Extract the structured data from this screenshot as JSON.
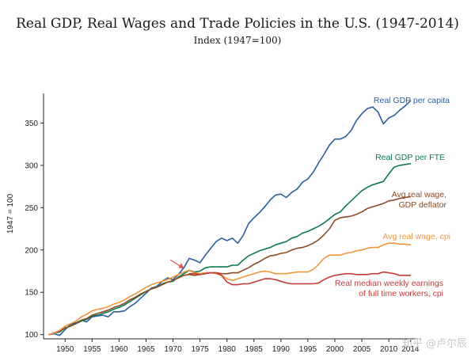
{
  "chart_data": {
    "type": "line",
    "title": "Real GDP, Real Wages and Trade Policies in the U.S. (1947-2014)",
    "subtitle": "Index (1947=100)",
    "ylabel": "1947 = 100",
    "xlabel": "",
    "xlim": [
      1946,
      2016
    ],
    "ylim": [
      95,
      385
    ],
    "x_ticks": [
      1950,
      1955,
      1960,
      1965,
      1970,
      1975,
      1980,
      1985,
      1990,
      1995,
      2000,
      2005,
      2010,
      2014
    ],
    "y_ticks": [
      100,
      150,
      200,
      250,
      300,
      350
    ],
    "grid": false,
    "annotation": {
      "type": "arrow",
      "target_x": 1972,
      "target_y": 178,
      "color": "#d9534f"
    },
    "series": [
      {
        "name": "Real GDP per capita",
        "label_lines": [
          "Real GDP per capita"
        ],
        "color": "#2c5d9c",
        "x": [
          1947,
          1948,
          1949,
          1950,
          1951,
          1952,
          1953,
          1954,
          1955,
          1956,
          1957,
          1958,
          1959,
          1960,
          1961,
          1962,
          1963,
          1964,
          1965,
          1966,
          1967,
          1968,
          1969,
          1970,
          1971,
          1972,
          1973,
          1974,
          1975,
          1976,
          1977,
          1978,
          1979,
          1980,
          1981,
          1982,
          1983,
          1984,
          1985,
          1986,
          1987,
          1988,
          1989,
          1990,
          1991,
          1992,
          1993,
          1994,
          1995,
          1996,
          1997,
          1998,
          1999,
          2000,
          2001,
          2002,
          2003,
          2004,
          2005,
          2006,
          2007,
          2008,
          2009,
          2010,
          2011,
          2012,
          2013,
          2014
        ],
        "values": [
          100,
          101,
          99,
          106,
          112,
          114,
          117,
          115,
          121,
          122,
          123,
          121,
          127,
          127,
          128,
          133,
          137,
          143,
          149,
          155,
          157,
          163,
          167,
          165,
          171,
          179,
          190,
          188,
          185,
          194,
          202,
          210,
          214,
          211,
          214,
          208,
          217,
          231,
          238,
          244,
          251,
          259,
          265,
          266,
          262,
          268,
          272,
          280,
          284,
          292,
          303,
          313,
          324,
          331,
          331,
          334,
          341,
          353,
          361,
          367,
          369,
          363,
          349,
          356,
          359,
          365,
          370,
          376
        ]
      },
      {
        "name": "Real GDP per FTE",
        "label_lines": [
          "Real GDP per FTE"
        ],
        "color": "#0d7a4e",
        "x": [
          1947,
          1948,
          1949,
          1950,
          1951,
          1952,
          1953,
          1954,
          1955,
          1956,
          1957,
          1958,
          1959,
          1960,
          1961,
          1962,
          1963,
          1964,
          1965,
          1966,
          1967,
          1968,
          1969,
          1970,
          1971,
          1972,
          1973,
          1974,
          1975,
          1976,
          1977,
          1978,
          1979,
          1980,
          1981,
          1982,
          1983,
          1984,
          1985,
          1986,
          1987,
          1988,
          1989,
          1990,
          1991,
          1992,
          1993,
          1994,
          1995,
          1996,
          1997,
          1998,
          1999,
          2000,
          2001,
          2002,
          2003,
          2004,
          2005,
          2006,
          2007,
          2008,
          2009,
          2010,
          2011,
          2012,
          2013,
          2014
        ],
        "values": [
          100,
          102,
          103,
          108,
          110,
          113,
          116,
          118,
          122,
          123,
          125,
          127,
          130,
          132,
          135,
          139,
          143,
          147,
          151,
          154,
          156,
          160,
          162,
          163,
          168,
          172,
          176,
          174,
          175,
          179,
          180,
          180,
          180,
          180,
          182,
          182,
          188,
          193,
          196,
          199,
          201,
          203,
          206,
          208,
          210,
          214,
          216,
          220,
          222,
          225,
          228,
          232,
          237,
          242,
          245,
          252,
          258,
          264,
          270,
          274,
          277,
          279,
          281,
          290,
          298,
          300,
          301,
          302
        ]
      },
      {
        "name": "Avg real wage, GDP deflator",
        "label_lines": [
          "Avg real wage,",
          "GDP deflator"
        ],
        "color": "#8b4a22",
        "x": [
          1947,
          1948,
          1949,
          1950,
          1951,
          1952,
          1953,
          1954,
          1955,
          1956,
          1957,
          1958,
          1959,
          1960,
          1961,
          1962,
          1963,
          1964,
          1965,
          1966,
          1967,
          1968,
          1969,
          1970,
          1971,
          1972,
          1973,
          1974,
          1975,
          1976,
          1977,
          1978,
          1979,
          1980,
          1981,
          1982,
          1983,
          1984,
          1985,
          1986,
          1987,
          1988,
          1989,
          1990,
          1991,
          1992,
          1993,
          1994,
          1995,
          1996,
          1997,
          1998,
          1999,
          2000,
          2001,
          2002,
          2003,
          2004,
          2005,
          2006,
          2007,
          2008,
          2009,
          2010,
          2011,
          2012,
          2013,
          2014
        ],
        "values": [
          100,
          102,
          104,
          108,
          110,
          113,
          117,
          119,
          123,
          125,
          127,
          129,
          132,
          134,
          137,
          141,
          144,
          148,
          151,
          154,
          156,
          159,
          162,
          164,
          167,
          170,
          171,
          170,
          171,
          173,
          173,
          173,
          172,
          172,
          173,
          173,
          176,
          179,
          183,
          186,
          190,
          193,
          194,
          196,
          197,
          200,
          202,
          203,
          205,
          208,
          212,
          218,
          225,
          235,
          238,
          239,
          240,
          242,
          245,
          249,
          251,
          253,
          255,
          258,
          259,
          261,
          262,
          263
        ]
      },
      {
        "name": "Avg real wage, cpi",
        "label_lines": [
          "Avg real wage, cpi"
        ],
        "color": "#f0963c",
        "x": [
          1947,
          1948,
          1949,
          1950,
          1951,
          1952,
          1953,
          1954,
          1955,
          1956,
          1957,
          1958,
          1959,
          1960,
          1961,
          1962,
          1963,
          1964,
          1965,
          1966,
          1967,
          1968,
          1969,
          1970,
          1971,
          1972,
          1973,
          1974,
          1975,
          1976,
          1977,
          1978,
          1979,
          1980,
          1981,
          1982,
          1983,
          1984,
          1985,
          1986,
          1987,
          1988,
          1989,
          1990,
          1991,
          1992,
          1993,
          1994,
          1995,
          1996,
          1997,
          1998,
          1999,
          2000,
          2001,
          2002,
          2003,
          2004,
          2005,
          2006,
          2007,
          2008,
          2009,
          2010,
          2011,
          2012,
          2013,
          2014
        ],
        "values": [
          100,
          102,
          105,
          110,
          113,
          116,
          121,
          124,
          128,
          130,
          131,
          133,
          136,
          138,
          141,
          145,
          148,
          152,
          156,
          159,
          161,
          163,
          165,
          168,
          171,
          174,
          176,
          173,
          172,
          173,
          173,
          172,
          170,
          166,
          164,
          166,
          168,
          170,
          172,
          174,
          175,
          174,
          172,
          172,
          172,
          173,
          174,
          174,
          174,
          177,
          183,
          190,
          194,
          194,
          194,
          196,
          197,
          199,
          200,
          202,
          203,
          203,
          206,
          208,
          208,
          207,
          207,
          206
        ]
      },
      {
        "name": "Real median weekly earnings of full time workers, cpi",
        "label_lines": [
          "Real median weekly earnings",
          "of full time workers, cpi"
        ],
        "color": "#c43c39",
        "x": [
          1973,
          1974,
          1975,
          1976,
          1977,
          1978,
          1979,
          1980,
          1981,
          1982,
          1983,
          1984,
          1985,
          1986,
          1987,
          1988,
          1989,
          1990,
          1991,
          1992,
          1993,
          1994,
          1995,
          1996,
          1997,
          1998,
          1999,
          2000,
          2001,
          2002,
          2003,
          2004,
          2005,
          2006,
          2007,
          2008,
          2009,
          2010,
          2011,
          2012,
          2013,
          2014
        ],
        "values": [
          172,
          172,
          171,
          172,
          173,
          173,
          170,
          162,
          159,
          159,
          160,
          160,
          162,
          164,
          166,
          166,
          165,
          163,
          161,
          160,
          160,
          160,
          160,
          160,
          161,
          165,
          168,
          170,
          171,
          172,
          172,
          171,
          171,
          171,
          172,
          172,
          174,
          173,
          172,
          170,
          170,
          170
        ]
      }
    ]
  },
  "watermark": "知乎 @卢尔辰"
}
